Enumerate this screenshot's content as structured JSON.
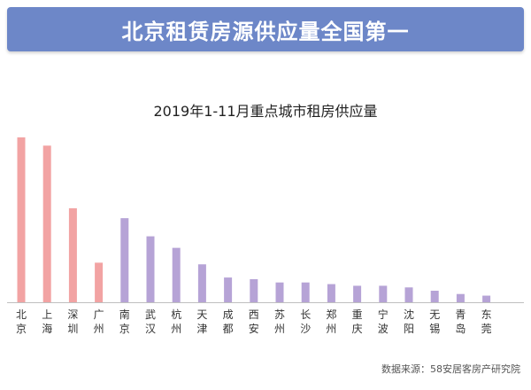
{
  "banner": {
    "title": "北京租赁房源供应量全国第一"
  },
  "source": "数据来源：58安居客房产研究院",
  "colors": {
    "banner": "#6d87c8",
    "highlight": "#f2a3a3",
    "normal": "#b6a3d6"
  },
  "chart_data": {
    "type": "bar",
    "title": "2019年1-11月重点城市租房供应量",
    "xlabel": "",
    "ylabel": "",
    "y_axis_shown": false,
    "grid": false,
    "categories": [
      "北京",
      "上海",
      "深圳",
      "广州",
      "南京",
      "武汉",
      "杭州",
      "天津",
      "成都",
      "西安",
      "苏州",
      "长沙",
      "郑州",
      "重庆",
      "宁波",
      "沈阳",
      "无锡",
      "青岛",
      "东莞"
    ],
    "values": [
      100,
      95,
      57,
      24,
      51,
      40,
      33,
      23,
      15,
      14,
      12,
      12,
      11,
      10,
      10,
      9,
      7,
      5,
      4
    ],
    "highlight_count": 4,
    "ylim": [
      0,
      100
    ]
  }
}
